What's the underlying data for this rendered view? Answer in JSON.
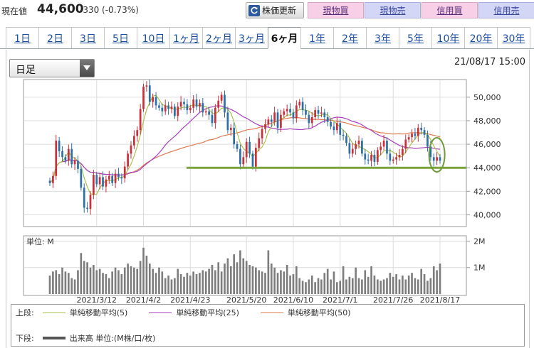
{
  "price_bar": {
    "label": "現在値",
    "value": "44,600",
    "change": "-330 (-0.73%)",
    "refresh_label": "株価更新",
    "buttons": {
      "spot_buy": "現物買",
      "spot_sell": "現物売",
      "margin_buy": "信用買",
      "margin_sell": "信用売"
    }
  },
  "period_tabs": [
    "1日",
    "2日",
    "3日",
    "5日",
    "10日",
    "1ヶ月",
    "2ヶ月",
    "3ヶ月",
    "6ヶ月",
    "1年",
    "2年",
    "3年",
    "5年",
    "10年",
    "20年",
    "30年"
  ],
  "active_tab": "6ヶ月",
  "chart_controls": {
    "frequency": "日足",
    "datetime": "21/08/17 15:00"
  },
  "colors": {
    "up": "#c8303a",
    "down": "#2f6fa6",
    "ma5": "#a9c24a",
    "ma25": "#a93fc0",
    "ma50": "#e07a4f",
    "volume": "#7d7d7d",
    "support_line": "#7aa33a",
    "highlight_circle": "#6f9a3a"
  },
  "legend": {
    "upper_label": "上段:",
    "lower_label": "下段:",
    "ma5": "単純移動平均(5)",
    "ma25": "単純移動平均(25)",
    "ma50": "単純移動平均(50)",
    "volume": "出来高 単位:(M株/口/枚)"
  },
  "chart_data": [
    {
      "type": "candlestick",
      "title": "",
      "price_axis": {
        "ylim": [
          39000,
          51500
        ],
        "ticks": [
          "40,000",
          "42,000",
          "44,000",
          "46,000",
          "48,000",
          "50,000"
        ],
        "tick_values": [
          40000,
          42000,
          44000,
          46000,
          48000,
          50000
        ]
      },
      "x_ticks": [
        "2021/3/12",
        "2021/4/2",
        "2021/4/23",
        "2021/5/20",
        "2021/6/10",
        "2021/7/1",
        "2021/7/26",
        "2021/8/17"
      ],
      "x_tick_index": [
        15,
        30,
        45,
        63,
        78,
        93,
        110,
        125
      ],
      "support_level": 44000,
      "closes": [
        42700,
        43300,
        46300,
        45400,
        44900,
        44600,
        45600,
        44300,
        44600,
        43900,
        42300,
        40600,
        40500,
        41700,
        43400,
        42600,
        43200,
        42400,
        43000,
        43300,
        42700,
        43500,
        43200,
        43100,
        44100,
        45200,
        45900,
        46700,
        47200,
        49000,
        50900,
        51000,
        49600,
        50000,
        49300,
        49100,
        48800,
        49300,
        49000,
        49200,
        48400,
        49200,
        49600,
        49400,
        48900,
        49100,
        49800,
        49200,
        49500,
        48700,
        48800,
        48500,
        47800,
        49100,
        49700,
        50200,
        48700,
        47200,
        47400,
        46000,
        45600,
        44300,
        44900,
        46200,
        45200,
        44100,
        45700,
        46500,
        47300,
        47700,
        48100,
        47900,
        48700,
        47400,
        48500,
        48800,
        49000,
        48700,
        48200,
        49300,
        49600,
        48900,
        48500,
        47800,
        48300,
        48900,
        48600,
        48700,
        48300,
        47900,
        47500,
        47200,
        47800,
        46800,
        46700,
        46100,
        45200,
        45600,
        46000,
        46300,
        45200,
        44700,
        44600,
        45100,
        44500,
        45500,
        45800,
        46300,
        45200,
        44600,
        44700,
        44900,
        45100,
        45600,
        46400,
        46600,
        46900,
        46700,
        47400,
        47200,
        46800,
        45800,
        44900,
        44600,
        44900,
        44600
      ],
      "volumes": [
        0.7,
        0.85,
        0.9,
        0.75,
        1.0,
        0.85,
        0.8,
        0.6,
        0.55,
        0.9,
        1.55,
        1.25,
        1.2,
        1.0,
        1.1,
        0.9,
        0.95,
        0.8,
        0.75,
        0.6,
        0.85,
        1.0,
        0.9,
        0.75,
        1.0,
        1.15,
        1.05,
        1.0,
        0.95,
        1.25,
        1.75,
        1.45,
        1.15,
        0.95,
        0.8,
        1.0,
        0.85,
        0.6,
        0.7,
        0.55,
        0.6,
        0.95,
        0.75,
        0.65,
        0.8,
        0.7,
        0.85,
        0.75,
        0.8,
        0.9,
        0.85,
        0.95,
        1.1,
        0.9,
        1.2,
        0.85,
        1.15,
        1.35,
        1.05,
        1.5,
        1.2,
        1.65,
        1.35,
        1.25,
        1.1,
        1.05,
        1.0,
        0.9,
        0.85,
        0.8,
        1.65,
        1.15,
        1.0,
        0.8,
        0.9,
        0.85,
        1.1,
        0.7,
        0.75,
        1.05,
        0.6,
        0.5,
        0.45,
        0.55,
        0.7,
        0.45,
        0.6,
        0.55,
        0.8,
        0.95,
        0.55,
        0.85,
        0.45,
        0.5,
        1.05,
        0.55,
        0.65,
        0.6,
        1.0,
        0.6,
        0.55,
        0.9,
        0.65,
        1.05,
        0.7,
        0.55,
        0.5,
        0.55,
        0.6,
        0.8,
        0.65,
        0.75,
        0.55,
        0.7,
        0.55,
        0.7,
        0.8,
        0.6,
        0.55,
        0.95,
        0.75,
        0.5,
        0.6,
        1.05,
        0.9,
        1.15
      ],
      "volume_axis": {
        "ylim": [
          0,
          2.2
        ],
        "ticks": [
          "1M",
          "2M"
        ],
        "tick_values": [
          1,
          2
        ],
        "unit_label": "単位: M"
      }
    }
  ]
}
